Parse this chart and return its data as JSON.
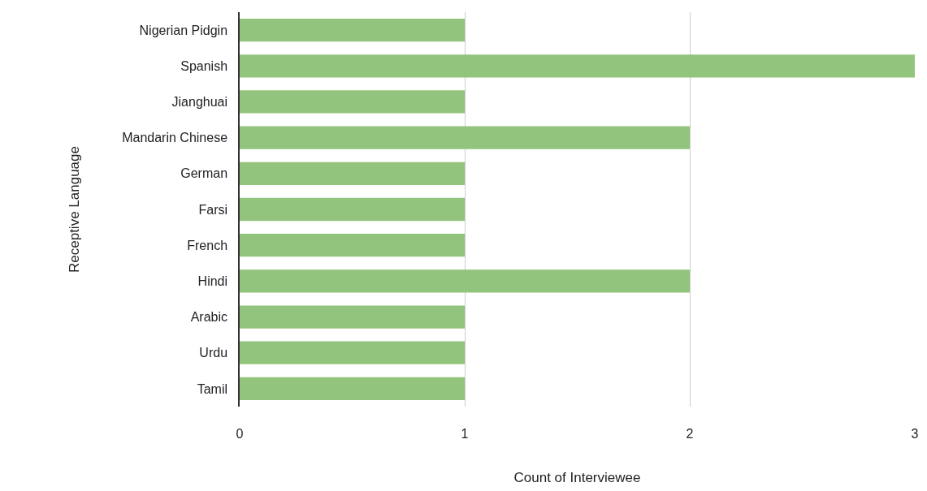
{
  "chart_data": {
    "type": "bar",
    "orientation": "horizontal",
    "xlabel": "Count of Interviewee",
    "ylabel": "Receptive Language",
    "categories": [
      "Nigerian Pidgin",
      "Spanish",
      "Jianghuai",
      "Mandarin Chinese",
      "German",
      "Farsi",
      "French",
      "Hindi",
      "Arabic",
      "Urdu",
      "Tamil"
    ],
    "values": [
      1,
      3,
      1,
      2,
      1,
      1,
      1,
      2,
      1,
      1,
      1
    ],
    "color": "#93c47d",
    "xlim": [
      0,
      3
    ],
    "xticks": [
      0,
      1,
      2,
      3
    ],
    "grid": "x"
  }
}
